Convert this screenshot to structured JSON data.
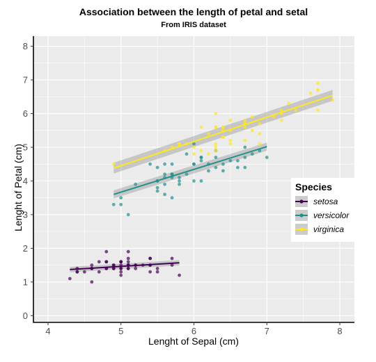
{
  "chart_data": {
    "type": "scatter",
    "title": "Association between the length of petal and setal",
    "subtitle": "From IRIS dataset",
    "xlabel": "Lenght of Sepal (cm)",
    "ylabel": "Lenght of Petal (cm)",
    "xlim": [
      3.8,
      8.2
    ],
    "ylim": [
      -0.2,
      8.3
    ],
    "xticks": [
      4,
      5,
      6,
      7,
      8
    ],
    "yticks": [
      0,
      1,
      2,
      3,
      4,
      5,
      6,
      7,
      8
    ],
    "grid": true,
    "background": "#ebebeb",
    "legend": {
      "title": "Species",
      "position": "right"
    },
    "series": [
      {
        "name": "setosa",
        "color": "#440154",
        "fit": {
          "x": [
            4.3,
            5.8
          ],
          "y": [
            1.37,
            1.57
          ],
          "band": 0.08
        },
        "points": [
          [
            5.1,
            1.4
          ],
          [
            4.9,
            1.4
          ],
          [
            4.7,
            1.3
          ],
          [
            4.6,
            1.5
          ],
          [
            5.0,
            1.4
          ],
          [
            5.4,
            1.7
          ],
          [
            4.6,
            1.4
          ],
          [
            5.0,
            1.5
          ],
          [
            4.4,
            1.4
          ],
          [
            4.9,
            1.5
          ],
          [
            5.4,
            1.5
          ],
          [
            4.8,
            1.6
          ],
          [
            4.8,
            1.4
          ],
          [
            4.3,
            1.1
          ],
          [
            5.8,
            1.2
          ],
          [
            5.7,
            1.5
          ],
          [
            5.4,
            1.3
          ],
          [
            5.1,
            1.4
          ],
          [
            5.7,
            1.7
          ],
          [
            5.1,
            1.5
          ],
          [
            5.4,
            1.7
          ],
          [
            5.1,
            1.5
          ],
          [
            4.6,
            1.0
          ],
          [
            5.1,
            1.7
          ],
          [
            4.8,
            1.9
          ],
          [
            5.0,
            1.6
          ],
          [
            5.0,
            1.6
          ],
          [
            5.2,
            1.5
          ],
          [
            5.2,
            1.4
          ],
          [
            4.7,
            1.6
          ],
          [
            4.8,
            1.6
          ],
          [
            5.4,
            1.5
          ],
          [
            5.2,
            1.5
          ],
          [
            5.5,
            1.4
          ],
          [
            4.9,
            1.5
          ],
          [
            5.0,
            1.2
          ],
          [
            5.5,
            1.3
          ],
          [
            4.9,
            1.4
          ],
          [
            4.4,
            1.3
          ],
          [
            5.1,
            1.5
          ],
          [
            5.0,
            1.3
          ],
          [
            4.5,
            1.3
          ],
          [
            4.4,
            1.3
          ],
          [
            5.0,
            1.6
          ],
          [
            5.1,
            1.9
          ],
          [
            4.8,
            1.4
          ],
          [
            5.1,
            1.6
          ],
          [
            4.6,
            1.4
          ],
          [
            5.3,
            1.5
          ],
          [
            5.0,
            1.4
          ]
        ]
      },
      {
        "name": "versicolor",
        "color": "#21908c",
        "fit": {
          "x": [
            4.9,
            7.0
          ],
          "y": [
            3.6,
            5.02
          ],
          "band": 0.12
        },
        "points": [
          [
            7.0,
            4.7
          ],
          [
            6.4,
            4.5
          ],
          [
            6.9,
            4.9
          ],
          [
            5.5,
            4.0
          ],
          [
            6.5,
            4.6
          ],
          [
            5.7,
            4.5
          ],
          [
            6.3,
            4.7
          ],
          [
            4.9,
            3.3
          ],
          [
            6.6,
            4.6
          ],
          [
            5.2,
            3.9
          ],
          [
            5.0,
            3.5
          ],
          [
            5.9,
            4.2
          ],
          [
            6.0,
            4.0
          ],
          [
            6.1,
            4.7
          ],
          [
            5.6,
            3.6
          ],
          [
            6.7,
            4.4
          ],
          [
            5.6,
            4.5
          ],
          [
            5.8,
            4.1
          ],
          [
            6.2,
            4.5
          ],
          [
            5.6,
            3.9
          ],
          [
            5.9,
            4.8
          ],
          [
            6.1,
            4.0
          ],
          [
            6.3,
            4.9
          ],
          [
            6.1,
            4.7
          ],
          [
            6.4,
            4.3
          ],
          [
            6.6,
            4.4
          ],
          [
            6.8,
            4.8
          ],
          [
            6.7,
            5.0
          ],
          [
            6.0,
            4.5
          ],
          [
            5.7,
            3.5
          ],
          [
            5.5,
            3.8
          ],
          [
            5.5,
            3.7
          ],
          [
            5.8,
            3.9
          ],
          [
            6.0,
            5.1
          ],
          [
            5.4,
            4.5
          ],
          [
            6.0,
            4.5
          ],
          [
            6.7,
            4.7
          ],
          [
            6.3,
            4.4
          ],
          [
            5.6,
            4.1
          ],
          [
            5.5,
            4.0
          ],
          [
            5.5,
            4.4
          ],
          [
            6.1,
            4.6
          ],
          [
            5.8,
            4.0
          ],
          [
            5.0,
            3.3
          ],
          [
            5.6,
            4.2
          ],
          [
            5.7,
            4.2
          ],
          [
            5.7,
            4.2
          ],
          [
            6.2,
            4.3
          ],
          [
            5.1,
            3.0
          ],
          [
            5.7,
            4.1
          ]
        ]
      },
      {
        "name": "virginica",
        "color": "#fde725",
        "fit": {
          "x": [
            4.9,
            7.9
          ],
          "y": [
            4.38,
            6.54
          ],
          "band": 0.16
        },
        "points": [
          [
            6.3,
            6.0
          ],
          [
            5.8,
            5.1
          ],
          [
            7.1,
            5.9
          ],
          [
            6.3,
            5.6
          ],
          [
            6.5,
            5.8
          ],
          [
            7.6,
            6.6
          ],
          [
            4.9,
            4.5
          ],
          [
            7.3,
            6.3
          ],
          [
            6.7,
            5.8
          ],
          [
            7.2,
            6.1
          ],
          [
            6.5,
            5.1
          ],
          [
            6.4,
            5.3
          ],
          [
            6.8,
            5.5
          ],
          [
            5.7,
            5.0
          ],
          [
            5.8,
            5.1
          ],
          [
            6.4,
            5.3
          ],
          [
            6.5,
            5.5
          ],
          [
            7.7,
            6.7
          ],
          [
            7.7,
            6.9
          ],
          [
            6.0,
            5.0
          ],
          [
            6.9,
            5.7
          ],
          [
            5.6,
            4.9
          ],
          [
            7.7,
            6.7
          ],
          [
            6.3,
            4.9
          ],
          [
            6.7,
            5.7
          ],
          [
            7.2,
            6.0
          ],
          [
            6.2,
            4.8
          ],
          [
            6.1,
            4.9
          ],
          [
            6.4,
            5.6
          ],
          [
            7.2,
            5.8
          ],
          [
            7.4,
            6.1
          ],
          [
            7.9,
            6.4
          ],
          [
            6.4,
            5.6
          ],
          [
            6.3,
            5.1
          ],
          [
            6.1,
            5.6
          ],
          [
            7.7,
            6.1
          ],
          [
            6.3,
            5.6
          ],
          [
            6.4,
            5.5
          ],
          [
            6.0,
            4.8
          ],
          [
            6.9,
            5.4
          ],
          [
            6.7,
            5.6
          ],
          [
            6.9,
            5.1
          ],
          [
            5.8,
            5.1
          ],
          [
            6.8,
            5.9
          ],
          [
            6.7,
            5.7
          ],
          [
            6.7,
            5.2
          ],
          [
            6.3,
            5.0
          ],
          [
            6.5,
            5.2
          ],
          [
            6.2,
            5.4
          ],
          [
            5.9,
            5.1
          ]
        ]
      }
    ]
  }
}
